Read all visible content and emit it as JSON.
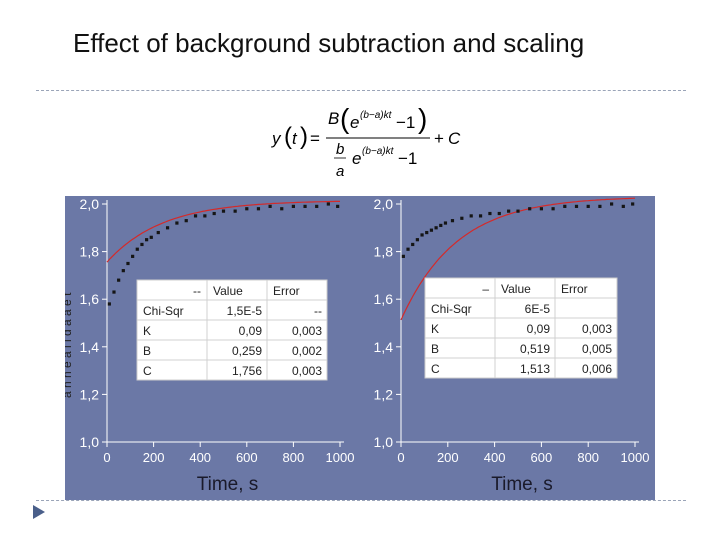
{
  "title": "Effect of background subtraction and scaling",
  "formula": {
    "lhs": "y(t) =",
    "numerator": "B(e^{(b−a)kt} − 1)",
    "denominator": "b/a e^{(b−a)kt} − 1",
    "tail": "+ C"
  },
  "colors": {
    "panel_bg": "#6b78a6",
    "axis": "#ffffff",
    "points": "#151515",
    "fit": "#d42a2a",
    "table_bg": "#ffffff",
    "rule": "#9aa4b8",
    "bullet": "#4a5f8a"
  },
  "icons": {
    "bullet": "triangle-bullet-icon"
  },
  "y_axis_label_fragment": "a h n e a l l d a a e t",
  "chart_data": [
    {
      "type": "scatter",
      "xlabel": "Time, s",
      "ylabel": "",
      "xlim": [
        0,
        1000
      ],
      "ylim": [
        1.0,
        2.0
      ],
      "x_ticks": [
        "0",
        "200",
        "400",
        "600",
        "800",
        "1000"
      ],
      "y_ticks": [
        "1,0",
        "1,2",
        "1,4",
        "1,6",
        "1,8",
        "2,0"
      ],
      "grid": false,
      "fit": {
        "K": 0.09,
        "B": 0.259,
        "C": 1.756,
        "k_scale": 0.0467
      },
      "series": [
        {
          "points_x": [
            10,
            30,
            50,
            70,
            90,
            110,
            130,
            150,
            170,
            190,
            220,
            260,
            300,
            340,
            380,
            420,
            460,
            500,
            550,
            600,
            650,
            700,
            750,
            800,
            850,
            900,
            950,
            990
          ],
          "points_y": [
            1.58,
            1.63,
            1.68,
            1.72,
            1.75,
            1.78,
            1.81,
            1.83,
            1.85,
            1.86,
            1.88,
            1.9,
            1.92,
            1.93,
            1.95,
            1.95,
            1.96,
            1.97,
            1.97,
            1.98,
            1.98,
            1.99,
            1.98,
            1.99,
            1.99,
            1.99,
            2.0,
            1.99
          ]
        }
      ],
      "table": {
        "headers": [
          "--",
          "Value",
          "Error"
        ],
        "rows": [
          [
            "Chi-Sqr",
            "1,5E-5",
            "--"
          ],
          [
            "K",
            "0,09",
            "0,003"
          ],
          [
            "B",
            "0,259",
            "0,002"
          ],
          [
            "C",
            "1,756",
            "0,003"
          ]
        ]
      }
    },
    {
      "type": "scatter",
      "xlabel": "Time, s",
      "ylabel": "",
      "xlim": [
        0,
        1000
      ],
      "ylim": [
        1.0,
        2.0
      ],
      "x_ticks": [
        "0",
        "200",
        "400",
        "600",
        "800",
        "1000"
      ],
      "y_ticks": [
        "1,0",
        "1,2",
        "1,4",
        "1,6",
        "1,8",
        "2,0"
      ],
      "grid": false,
      "fit": {
        "K": 0.09,
        "B": 0.519,
        "C": 1.513,
        "k_scale": 0.0467
      },
      "series": [
        {
          "points_x": [
            10,
            30,
            50,
            70,
            90,
            110,
            130,
            150,
            170,
            190,
            220,
            260,
            300,
            340,
            380,
            420,
            460,
            500,
            550,
            600,
            650,
            700,
            750,
            800,
            850,
            900,
            950,
            990
          ],
          "points_y": [
            1.78,
            1.81,
            1.83,
            1.85,
            1.87,
            1.88,
            1.89,
            1.9,
            1.91,
            1.92,
            1.93,
            1.94,
            1.95,
            1.95,
            1.96,
            1.96,
            1.97,
            1.97,
            1.98,
            1.98,
            1.98,
            1.99,
            1.99,
            1.99,
            1.99,
            2.0,
            1.99,
            2.0
          ]
        }
      ],
      "table": {
        "headers": [
          "–",
          "Value",
          "Error"
        ],
        "rows": [
          [
            "Chi-Sqr",
            "6E-5",
            ""
          ],
          [
            "K",
            "0,09",
            "0,003"
          ],
          [
            "B",
            "0,519",
            "0,005"
          ],
          [
            "C",
            "1,513",
            "0,006"
          ]
        ]
      }
    }
  ]
}
